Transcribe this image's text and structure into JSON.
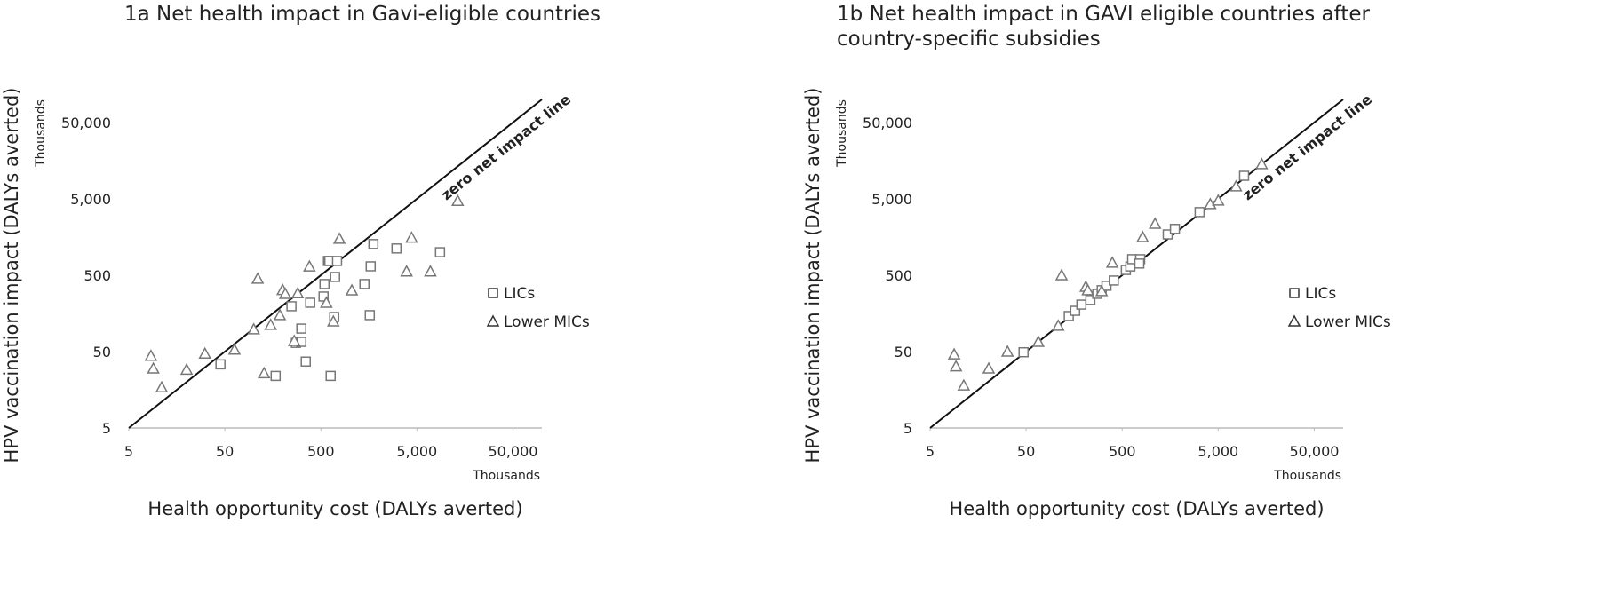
{
  "chart_data": [
    {
      "type": "scatter",
      "title": "1a Net health impact in Gavi-eligible countries",
      "x_label": "Health opportunity cost (DALYs averted)",
      "y_label": "HPV vaccination impact (DALYs averted)",
      "x_unit_label": "Thousands",
      "y_unit_label": "Thousands",
      "annotation": "zero net impact line",
      "log_x": true,
      "log_y": true,
      "grid": false,
      "legend": "right",
      "xlim": [
        5,
        100000
      ],
      "ylim": [
        5,
        100000
      ],
      "xticks": [
        5,
        50,
        500,
        {
          "value": 5000,
          "label": "5,000"
        },
        {
          "value": 50000,
          "label": "50,000"
        }
      ],
      "yticks": [
        5,
        50,
        500,
        {
          "value": 5000,
          "label": "5,000"
        },
        {
          "value": 50000,
          "label": "50,000"
        }
      ],
      "series": [
        {
          "name": "LICs",
          "marker": "square",
          "color": "#777777",
          "x": [
            45,
            169,
            247,
            275,
            313,
            313,
            348,
            387,
            533,
            545,
            593,
            632,
            688,
            703,
            612,
            737,
            1420,
            1615,
            1650,
            1760,
            3060,
            8700
          ],
          "values": [
            34,
            24,
            196,
            65,
            100,
            67,
            37,
            218,
            263,
            383,
            768,
            24,
            142,
            474,
            768,
            768,
            383,
            150,
            653,
            1280,
            1120,
            1000
          ]
        },
        {
          "name": "Lower MICs",
          "marker": "triangle",
          "color": "#777777",
          "x": [
            8.5,
            9,
            11,
            20,
            31,
            63,
            100,
            110,
            128,
            150,
            187,
            200,
            213,
            264,
            287,
            380,
            570,
            674,
            780,
            1050,
            3900,
            4400,
            6900,
            13300
          ],
          "values": [
            44,
            30,
            17,
            29,
            47,
            53,
            98,
            450,
            26,
            112,
            150,
            320,
            285,
            69,
            290,
            650,
            218,
            124,
            1500,
            317,
            560,
            1550,
            560,
            4700
          ]
        }
      ]
    },
    {
      "type": "scatter",
      "title": "1b Net health impact in GAVI eligible countries after country-specific subsidies",
      "x_label": "Health opportunity cost (DALYs averted)",
      "y_label": "HPV vaccination impact (DALYs averted)",
      "x_unit_label": "Thousands",
      "y_unit_label": "Thousands",
      "annotation": "zero net impact line",
      "log_x": true,
      "log_y": true,
      "grid": false,
      "legend": "right",
      "xlim": [
        5,
        100000
      ],
      "ylim": [
        5,
        100000
      ],
      "xticks": [
        5,
        50,
        500,
        {
          "value": 5000,
          "label": "5,000"
        },
        {
          "value": 50000,
          "label": "50,000"
        }
      ],
      "yticks": [
        5,
        50,
        500,
        {
          "value": 5000,
          "label": "5,000"
        },
        {
          "value": 50000,
          "label": "50,000"
        }
      ],
      "series": [
        {
          "name": "LICs",
          "marker": "square",
          "color": "#777777",
          "x": [
            47,
            139,
            162,
            188,
            233,
            275,
            306,
            343,
            409,
            546,
            608,
            636,
            770,
            754,
            1490,
            1770,
            3200,
            9300
          ],
          "values": [
            49,
            146,
            171,
            206,
            237,
            285,
            318,
            363,
            426,
            585,
            650,
            810,
            810,
            710,
            1710,
            2020,
            3350,
            10000
          ]
        },
        {
          "name": "Lower MICs",
          "marker": "triangle",
          "color": "#777777",
          "x": [
            8.9,
            9.3,
            11.2,
            20.4,
            32,
            67,
            108,
            117,
            209,
            219,
            306,
            395,
            817,
            1100,
            4130,
            5000,
            7660,
            14200
          ],
          "values": [
            46,
            32,
            18,
            30,
            50,
            67,
            109,
            500,
            353,
            318,
            309,
            728,
            1580,
            2360,
            4260,
            4740,
            7280,
            14200
          ]
        }
      ]
    }
  ]
}
